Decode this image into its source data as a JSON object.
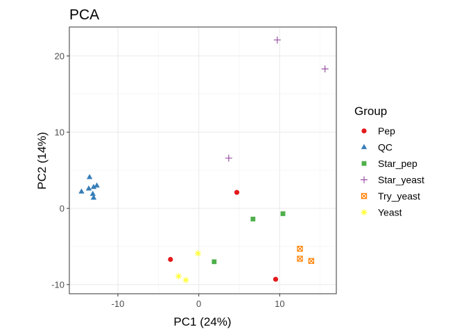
{
  "chart_data": {
    "type": "scatter",
    "title": "PCA",
    "xlabel": "PC1 (24%)",
    "ylabel": "PC2 (14%)",
    "xlim": [
      -16,
      17
    ],
    "ylim": [
      -11.2,
      23.8
    ],
    "xticks": [
      -10,
      0,
      10
    ],
    "yticks": [
      -10,
      0,
      10,
      20
    ],
    "x_minor": [
      -5,
      5,
      15
    ],
    "y_minor": [
      -5,
      5,
      15
    ],
    "grid": true,
    "legend_title": "Group",
    "legend_position": "right",
    "series": [
      {
        "name": "Pep",
        "color": "#e41a1c",
        "shape": "circle",
        "points": [
          [
            4.7,
            2.1
          ],
          [
            -3.5,
            -6.7
          ],
          [
            9.5,
            -9.3
          ]
        ]
      },
      {
        "name": "QC",
        "color": "#377eb8",
        "shape": "triangle",
        "points": [
          [
            -14.5,
            2.2
          ],
          [
            -13.5,
            4.1
          ],
          [
            -13.6,
            2.6
          ],
          [
            -13.0,
            2.8
          ],
          [
            -12.6,
            3.0
          ],
          [
            -13.1,
            1.9
          ],
          [
            -13.0,
            1.4
          ]
        ]
      },
      {
        "name": "Star_pep",
        "color": "#4daf4a",
        "shape": "square",
        "points": [
          [
            6.7,
            -1.4
          ],
          [
            10.4,
            -0.7
          ],
          [
            1.9,
            -7.0
          ]
        ]
      },
      {
        "name": "Star_yeast",
        "color": "#984ea3",
        "shape": "plus",
        "points": [
          [
            9.7,
            22.1
          ],
          [
            15.6,
            18.3
          ],
          [
            3.7,
            6.6
          ]
        ]
      },
      {
        "name": "Try_yeast",
        "color": "#ff7f00",
        "shape": "boxcross",
        "points": [
          [
            12.5,
            -5.3
          ],
          [
            12.5,
            -6.6
          ],
          [
            13.9,
            -6.9
          ]
        ]
      },
      {
        "name": "Yeast",
        "color": "#ffff33",
        "shape": "asterisk",
        "points": [
          [
            -0.1,
            -5.9
          ],
          [
            -2.5,
            -8.9
          ],
          [
            -1.6,
            -9.4
          ]
        ]
      }
    ]
  }
}
